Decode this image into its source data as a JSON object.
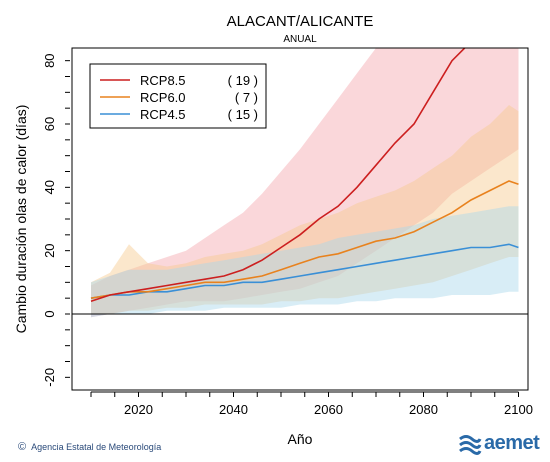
{
  "chart_data": {
    "type": "line",
    "title": "ALACANT/ALICANTE",
    "subtitle": "ANUAL",
    "xlabel": "Año",
    "ylabel": "Cambio duración olas de calor (días)",
    "xlim": [
      2006,
      2102
    ],
    "ylim": [
      -24,
      84
    ],
    "xticks": [
      2020,
      2040,
      2060,
      2080,
      2100
    ],
    "yticks": [
      -20,
      0,
      20,
      40,
      60,
      80
    ],
    "zero_line": 0,
    "legend_position": "top-left",
    "series": [
      {
        "name": "RCP8.5",
        "count": "( 19 )",
        "color": "#cc1f1f",
        "band_color": "#f3a6ae",
        "x": [
          2010,
          2014,
          2018,
          2022,
          2026,
          2030,
          2034,
          2038,
          2042,
          2046,
          2050,
          2054,
          2058,
          2062,
          2066,
          2070,
          2074,
          2078,
          2082,
          2086,
          2090,
          2094,
          2098,
          2100
        ],
        "values": [
          4,
          6,
          7,
          8,
          9,
          10,
          11,
          12,
          14,
          17,
          21,
          25,
          30,
          34,
          40,
          47,
          54,
          60,
          70,
          80,
          86,
          86,
          86,
          86
        ],
        "lower": [
          -1,
          0,
          1,
          2,
          3,
          4,
          4,
          4,
          5,
          6,
          7,
          8,
          10,
          12,
          16,
          20,
          24,
          28,
          32,
          38,
          42,
          46,
          50,
          52
        ],
        "upper": [
          9,
          12,
          14,
          16,
          18,
          20,
          24,
          28,
          32,
          38,
          45,
          52,
          60,
          68,
          76,
          84,
          84,
          84,
          84,
          84,
          84,
          84,
          84,
          84
        ]
      },
      {
        "name": "RCP6.0",
        "count": "(  7 )",
        "color": "#e8821e",
        "band_color": "#f7c98e",
        "x": [
          2010,
          2014,
          2018,
          2022,
          2026,
          2030,
          2034,
          2038,
          2042,
          2046,
          2050,
          2054,
          2058,
          2062,
          2066,
          2070,
          2074,
          2078,
          2082,
          2086,
          2090,
          2094,
          2098,
          2100
        ],
        "values": [
          5,
          6,
          7,
          7,
          8,
          9,
          10,
          10,
          11,
          12,
          14,
          16,
          18,
          19,
          21,
          23,
          24,
          26,
          29,
          32,
          36,
          39,
          42,
          41
        ],
        "lower": [
          0,
          0,
          1,
          1,
          2,
          2,
          3,
          3,
          3,
          3,
          4,
          4,
          5,
          5,
          6,
          7,
          8,
          9,
          10,
          12,
          14,
          16,
          18,
          18
        ],
        "upper": [
          10,
          13,
          22,
          16,
          15,
          16,
          18,
          19,
          20,
          22,
          25,
          28,
          30,
          32,
          35,
          37,
          39,
          42,
          46,
          50,
          56,
          60,
          66,
          64
        ]
      },
      {
        "name": "RCP4.5",
        "count": "( 15 )",
        "color": "#3a8fd6",
        "band_color": "#a9d8ea",
        "x": [
          2010,
          2014,
          2018,
          2022,
          2026,
          2030,
          2034,
          2038,
          2042,
          2046,
          2050,
          2054,
          2058,
          2062,
          2066,
          2070,
          2074,
          2078,
          2082,
          2086,
          2090,
          2094,
          2098,
          2100
        ],
        "values": [
          5,
          6,
          6,
          7,
          7,
          8,
          9,
          9,
          10,
          10,
          11,
          12,
          13,
          14,
          15,
          16,
          17,
          18,
          19,
          20,
          21,
          21,
          22,
          21
        ],
        "lower": [
          -1,
          0,
          0,
          0,
          1,
          1,
          1,
          2,
          2,
          2,
          2,
          3,
          3,
          3,
          4,
          4,
          5,
          5,
          5,
          6,
          6,
          6,
          7,
          7
        ],
        "upper": [
          10,
          12,
          14,
          14,
          14,
          15,
          16,
          17,
          18,
          19,
          20,
          21,
          22,
          24,
          25,
          26,
          27,
          28,
          30,
          31,
          32,
          33,
          34,
          34
        ]
      }
    ]
  },
  "footer": {
    "copyright": "©",
    "agency": "Agencia Estatal de Meteorología",
    "brand": "aemet"
  }
}
